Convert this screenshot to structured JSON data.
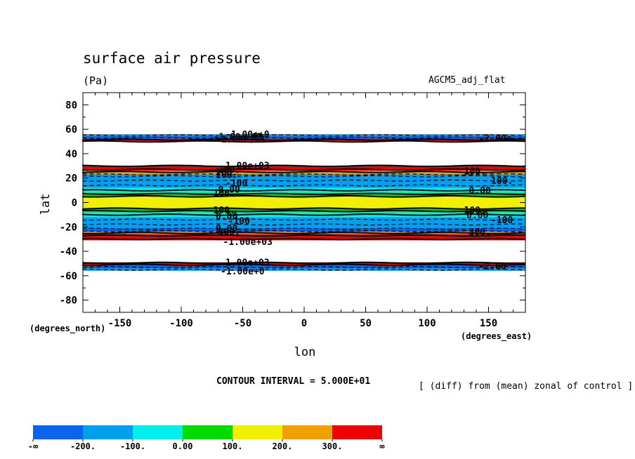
{
  "chart_data": {
    "type": "contour",
    "title": "surface air pressure",
    "units": "(Pa)",
    "experiment": "AGCM5_adj_flat",
    "xlabel": "lon",
    "ylabel": "lat",
    "x_unit_label": "(degrees_east)",
    "y_unit_label": "(degrees_north)",
    "xlim": [
      -180,
      180
    ],
    "ylim": [
      -90,
      90
    ],
    "x_ticks": [
      -150,
      -100,
      -50,
      0,
      50,
      100,
      150
    ],
    "y_ticks": [
      80,
      60,
      40,
      20,
      0,
      -20,
      -40,
      -60,
      -80
    ],
    "contour_interval_text": "CONTOUR INTERVAL = 5.000E+01",
    "note": "[ (diff) from (mean) zonal of control ]",
    "colorbar": {
      "labels": [
        "-∞",
        "-200.",
        "-100.",
        "0.00",
        "100.",
        "200.",
        "300.",
        "∞"
      ],
      "colors": [
        "#0a64f0",
        "#00a0f0",
        "#00f0f0",
        "#00dc00",
        "#f0f000",
        "#f0a000",
        "#f00000"
      ]
    },
    "bands": [
      {
        "lat_top": 56,
        "lat_bot": 54.5,
        "color": "#00a0f0"
      },
      {
        "lat_top": 54.5,
        "lat_bot": 52.5,
        "color": "#0a64f0"
      },
      {
        "lat_top": 52.5,
        "lat_bot": 50,
        "color": "#f00000"
      },
      {
        "lat_top": 30,
        "lat_bot": 26,
        "color": "#f00000"
      },
      {
        "lat_top": 26,
        "lat_bot": 23,
        "color": "#f0a000"
      },
      {
        "lat_top": 23,
        "lat_bot": 21,
        "color": "#00a0f0"
      },
      {
        "lat_top": 21,
        "lat_bot": 12,
        "color": "#00a0f0"
      },
      {
        "lat_top": 12,
        "lat_bot": 8,
        "color": "#00f0f0"
      },
      {
        "lat_top": 8,
        "lat_bot": 5,
        "color": "#00dc00"
      },
      {
        "lat_top": 5,
        "lat_bot": -5,
        "color": "#f0f000"
      },
      {
        "lat_top": -5,
        "lat_bot": -8,
        "color": "#00dc00"
      },
      {
        "lat_top": -8,
        "lat_bot": -12,
        "color": "#00f0f0"
      },
      {
        "lat_top": -12,
        "lat_bot": -21,
        "color": "#00a0f0"
      },
      {
        "lat_top": -21,
        "lat_bot": -24,
        "color": "#0a64f0"
      },
      {
        "lat_top": -24,
        "lat_bot": -26,
        "color": "#f0a000"
      },
      {
        "lat_top": -26,
        "lat_bot": -31,
        "color": "#f00000"
      },
      {
        "lat_top": -49,
        "lat_bot": -51.5,
        "color": "#f00000"
      },
      {
        "lat_top": -51.5,
        "lat_bot": -54,
        "color": "#0a64f0"
      },
      {
        "lat_top": -54,
        "lat_bot": -56,
        "color": "#00a0f0"
      }
    ],
    "contour_lines": [
      {
        "lat": 55,
        "dashed": true
      },
      {
        "lat": 53,
        "dashed": true
      },
      {
        "lat": 51.5,
        "dashed": false
      },
      {
        "lat": 50,
        "dashed": false
      },
      {
        "lat": 30,
        "dashed": false
      },
      {
        "lat": 27,
        "dashed": false
      },
      {
        "lat": 25,
        "dashed": false
      },
      {
        "lat": 23,
        "dashed": true
      },
      {
        "lat": 21.5,
        "dashed": true
      },
      {
        "lat": 18,
        "dashed": true
      },
      {
        "lat": 14,
        "dashed": true
      },
      {
        "lat": 10,
        "dashed": false
      },
      {
        "lat": 7,
        "dashed": false
      },
      {
        "lat": 5,
        "dashed": false
      },
      {
        "lat": -5,
        "dashed": false
      },
      {
        "lat": -7,
        "dashed": false
      },
      {
        "lat": -10,
        "dashed": false
      },
      {
        "lat": -14,
        "dashed": true
      },
      {
        "lat": -18,
        "dashed": true
      },
      {
        "lat": -21.5,
        "dashed": true
      },
      {
        "lat": -23.5,
        "dashed": true
      },
      {
        "lat": -25,
        "dashed": false
      },
      {
        "lat": -27,
        "dashed": false
      },
      {
        "lat": -30,
        "dashed": false
      },
      {
        "lat": -49.5,
        "dashed": false
      },
      {
        "lat": -51,
        "dashed": false
      },
      {
        "lat": -53,
        "dashed": true
      },
      {
        "lat": -55,
        "dashed": true
      }
    ],
    "contour_labels": [
      {
        "text": "-1.00e+0",
        "lon": -64,
        "lat": 56
      },
      {
        "text": "-1.00e+03",
        "lon": -72,
        "lat": 52
      },
      {
        "text": "-1.00e+03",
        "lon": -74,
        "lat": 54
      },
      {
        "text": "-2.00e",
        "lon": 142,
        "lat": 53
      },
      {
        "text": "1.00e+03",
        "lon": -64,
        "lat": 30.5
      },
      {
        "text": "300.",
        "lon": -70,
        "lat": 27
      },
      {
        "text": "200.",
        "lon": -72,
        "lat": 25
      },
      {
        "text": "100.",
        "lon": -72,
        "lat": 23
      },
      {
        "text": "-100",
        "lon": -64,
        "lat": 16
      },
      {
        "text": "0.00",
        "lon": -70,
        "lat": 11
      },
      {
        "text": "100.",
        "lon": -74,
        "lat": 8
      },
      {
        "text": "100.",
        "lon": 130,
        "lat": 26
      },
      {
        "text": "100.",
        "lon": 152,
        "lat": 18
      },
      {
        "text": "0.00",
        "lon": 134,
        "lat": 10
      },
      {
        "text": "100.",
        "lon": -74,
        "lat": -6
      },
      {
        "text": "0.00",
        "lon": -72,
        "lat": -11
      },
      {
        "text": "-100",
        "lon": -62,
        "lat": -15
      },
      {
        "text": "0.00",
        "lon": -72,
        "lat": -21
      },
      {
        "text": "300.",
        "lon": -70,
        "lat": -24
      },
      {
        "text": "-1.00e+03",
        "lon": -66,
        "lat": -32
      },
      {
        "text": "100.",
        "lon": 130,
        "lat": -6
      },
      {
        "text": "0.00",
        "lon": 132,
        "lat": -10
      },
      {
        "text": "-100",
        "lon": 152,
        "lat": -14
      },
      {
        "text": "300.",
        "lon": 134,
        "lat": -24
      },
      {
        "text": "1.00e+03",
        "lon": -64,
        "lat": -49
      },
      {
        "text": "-1.00e+0",
        "lon": -68,
        "lat": -56
      },
      {
        "text": "-2.00",
        "lon": 142,
        "lat": -52
      }
    ]
  }
}
